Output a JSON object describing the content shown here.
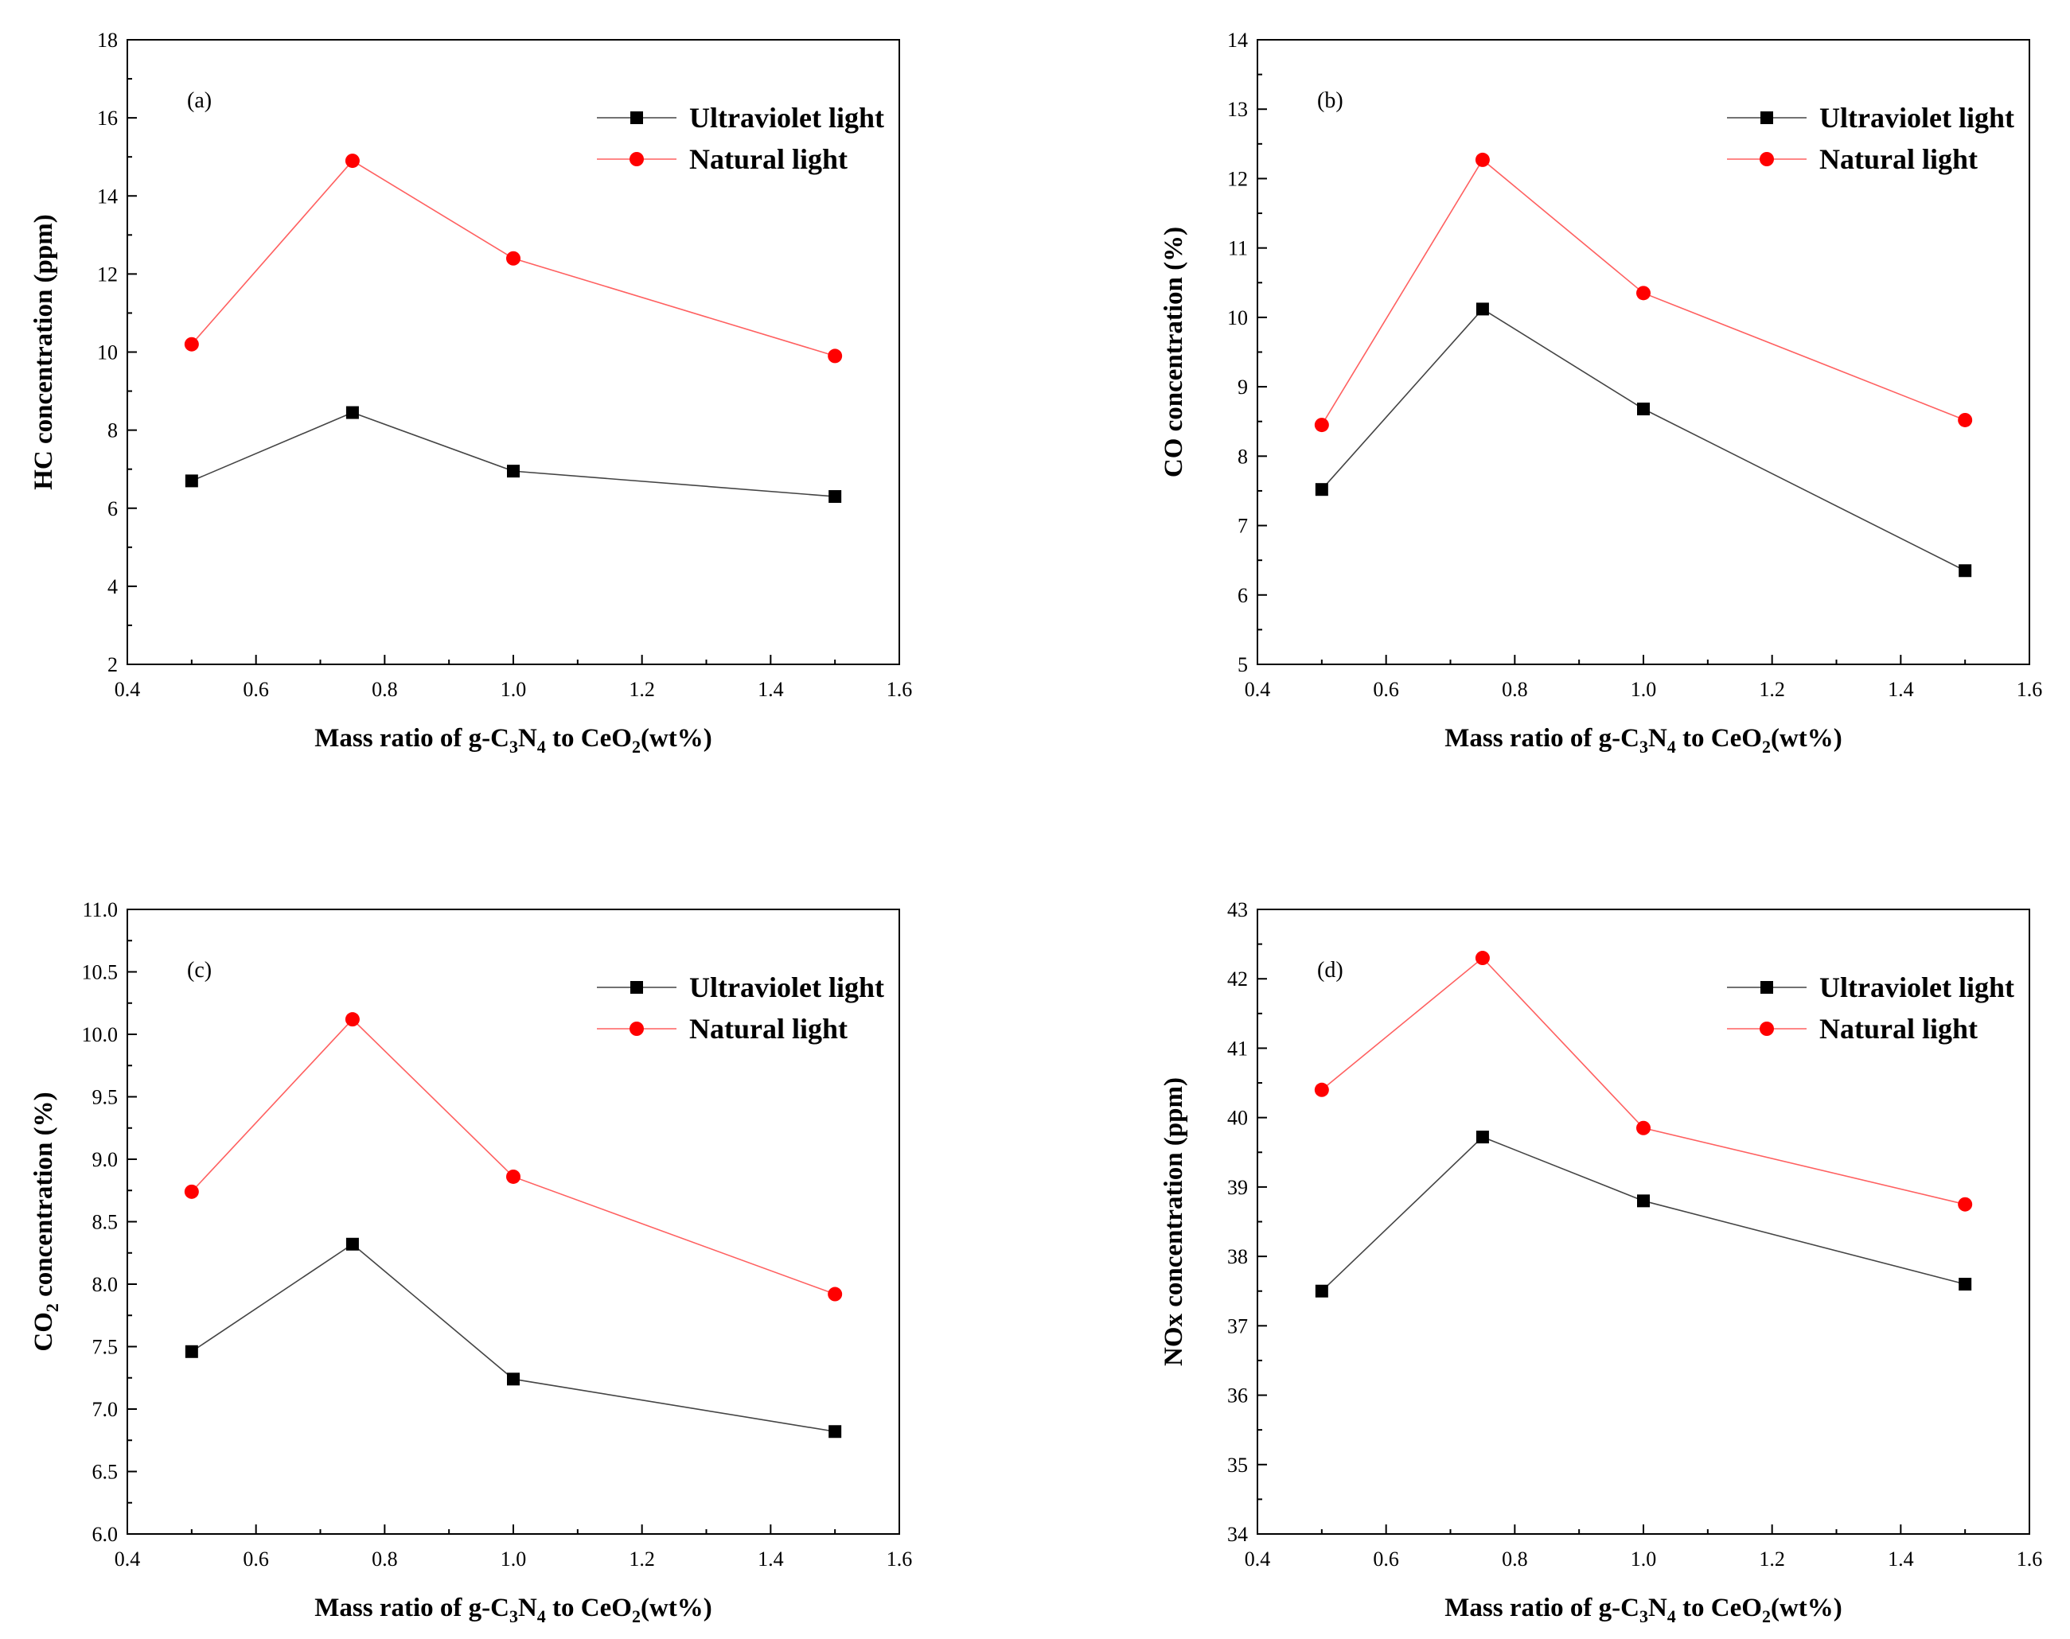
{
  "chart_data": [
    {
      "type": "line",
      "panel_label": "(a)",
      "x": [
        0.5,
        0.75,
        1.0,
        1.5
      ],
      "xlim": [
        0.4,
        1.6
      ],
      "xticks": [
        "0.4",
        "0.6",
        "0.8",
        "1.0",
        "1.2",
        "1.4",
        "1.6"
      ],
      "xtick_values": [
        0.4,
        0.6,
        0.8,
        1.0,
        1.2,
        1.4,
        1.6
      ],
      "ylim": [
        2,
        18
      ],
      "yticks": [
        "2",
        "4",
        "6",
        "8",
        "10",
        "12",
        "14",
        "16",
        "18"
      ],
      "ytick_values": [
        2,
        4,
        6,
        8,
        10,
        12,
        14,
        16,
        18
      ],
      "xlabel": "Mass ratio of g-C3N4 to CeO2(wt%)",
      "xlabel_parts": [
        "Mass ratio of g-C",
        "3",
        "N",
        "4",
        " to CeO",
        "2",
        "(wt%)"
      ],
      "ylabel": "HC concentration (ppm)",
      "ylabel_parts": [
        "HC concentration (ppm)"
      ],
      "series": [
        {
          "name": "Ultraviolet light",
          "values": [
            6.7,
            8.45,
            6.95,
            6.3
          ],
          "color": "#000000",
          "marker": "square"
        },
        {
          "name": "Natural light",
          "values": [
            10.2,
            14.9,
            12.4,
            9.9
          ],
          "color": "#ff0000",
          "marker": "circle"
        }
      ]
    },
    {
      "type": "line",
      "panel_label": "(b)",
      "x": [
        0.5,
        0.75,
        1.0,
        1.5
      ],
      "xlim": [
        0.4,
        1.6
      ],
      "xticks": [
        "0.4",
        "0.6",
        "0.8",
        "1.0",
        "1.2",
        "1.4",
        "1.6"
      ],
      "xtick_values": [
        0.4,
        0.6,
        0.8,
        1.0,
        1.2,
        1.4,
        1.6
      ],
      "ylim": [
        5,
        14
      ],
      "yticks": [
        "5",
        "6",
        "7",
        "8",
        "9",
        "10",
        "11",
        "12",
        "13",
        "14"
      ],
      "ytick_values": [
        5,
        6,
        7,
        8,
        9,
        10,
        11,
        12,
        13,
        14
      ],
      "xlabel": "Mass ratio of g-C3N4 to CeO2(wt%)",
      "xlabel_parts": [
        "Mass ratio of g-C",
        "3",
        "N",
        "4",
        " to CeO",
        "2",
        "(wt%)"
      ],
      "ylabel": "CO concentration (%)",
      "ylabel_parts": [
        "CO concentration (%)"
      ],
      "series": [
        {
          "name": "Ultraviolet light",
          "values": [
            7.52,
            10.12,
            8.68,
            6.35
          ],
          "color": "#000000",
          "marker": "square"
        },
        {
          "name": "Natural light",
          "values": [
            8.45,
            12.27,
            10.35,
            8.52
          ],
          "color": "#ff0000",
          "marker": "circle"
        }
      ]
    },
    {
      "type": "line",
      "panel_label": "(c)",
      "x": [
        0.5,
        0.75,
        1.0,
        1.5
      ],
      "xlim": [
        0.4,
        1.6
      ],
      "xticks": [
        "0.4",
        "0.6",
        "0.8",
        "1.0",
        "1.2",
        "1.4",
        "1.6"
      ],
      "xtick_values": [
        0.4,
        0.6,
        0.8,
        1.0,
        1.2,
        1.4,
        1.6
      ],
      "ylim": [
        6.0,
        11.0
      ],
      "yticks": [
        "6.0",
        "6.5",
        "7.0",
        "7.5",
        "8.0",
        "8.5",
        "9.0",
        "9.5",
        "10.0",
        "10.5",
        "11.0"
      ],
      "ytick_values": [
        6.0,
        6.5,
        7.0,
        7.5,
        8.0,
        8.5,
        9.0,
        9.5,
        10.0,
        10.5,
        11.0
      ],
      "xlabel": "Mass ratio of g-C3N4 to CeO2(wt%)",
      "xlabel_parts": [
        "Mass ratio of g-C",
        "3",
        "N",
        "4",
        " to CeO",
        "2",
        "(wt%)"
      ],
      "ylabel": "CO2 concentration (%)",
      "ylabel_parts": [
        "CO",
        "2",
        " concentration (%)"
      ],
      "series": [
        {
          "name": "Ultraviolet light",
          "values": [
            7.46,
            8.32,
            7.24,
            6.82
          ],
          "color": "#000000",
          "marker": "square"
        },
        {
          "name": "Natural light",
          "values": [
            8.74,
            10.12,
            8.86,
            7.92
          ],
          "color": "#ff0000",
          "marker": "circle"
        }
      ]
    },
    {
      "type": "line",
      "panel_label": "(d)",
      "x": [
        0.5,
        0.75,
        1.0,
        1.5
      ],
      "xlim": [
        0.4,
        1.6
      ],
      "xticks": [
        "0.4",
        "0.6",
        "0.8",
        "1.0",
        "1.2",
        "1.4",
        "1.6"
      ],
      "xtick_values": [
        0.4,
        0.6,
        0.8,
        1.0,
        1.2,
        1.4,
        1.6
      ],
      "ylim": [
        34,
        43
      ],
      "yticks": [
        "34",
        "35",
        "36",
        "37",
        "38",
        "39",
        "40",
        "41",
        "42",
        "43"
      ],
      "ytick_values": [
        34,
        35,
        36,
        37,
        38,
        39,
        40,
        41,
        42,
        43
      ],
      "xlabel": "Mass ratio of g-C3N4 to CeO2(wt%)",
      "xlabel_parts": [
        "Mass ratio of g-C",
        "3",
        "N",
        "4",
        " to CeO",
        "2",
        "(wt%)"
      ],
      "ylabel": "NOx concentration (ppm)",
      "ylabel_parts": [
        "NOx concentration (ppm)"
      ],
      "series": [
        {
          "name": "Ultraviolet light",
          "values": [
            37.5,
            39.72,
            38.8,
            37.6
          ],
          "color": "#000000",
          "marker": "square"
        },
        {
          "name": "Natural light",
          "values": [
            40.4,
            42.3,
            39.85,
            38.75
          ],
          "color": "#ff0000",
          "marker": "circle"
        }
      ]
    }
  ]
}
